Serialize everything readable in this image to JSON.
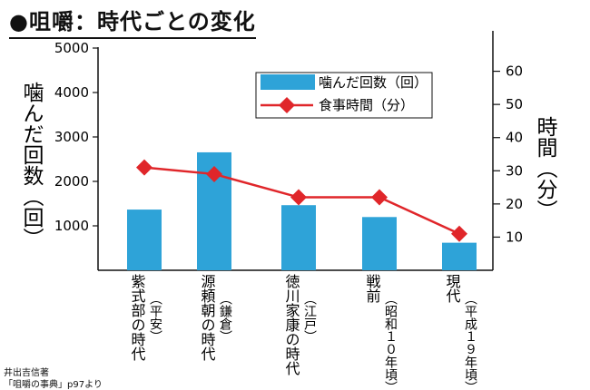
{
  "title": "●咀嚼：時代ごとの変化",
  "credit": {
    "line1": "井出吉信著",
    "line2": "「咀嚼の事典」p97より"
  },
  "chart_data": {
    "type": "bar+line",
    "categories": [
      {
        "name": "紫式部の時代",
        "era": "（平安）"
      },
      {
        "name": "源頼朝の時代",
        "era": "（鎌倉）"
      },
      {
        "name": "徳川家康の時代",
        "era": "（江戸）"
      },
      {
        "name": "戦前",
        "era": "（昭和１０年頃）"
      },
      {
        "name": "現代",
        "era": "（平成１９年頃）"
      }
    ],
    "series": [
      {
        "name": "噛んだ回数（回）",
        "type": "bar",
        "axis": "left",
        "color": "#2ea3d8",
        "values": [
          1366,
          2654,
          1465,
          1198,
          620
        ]
      },
      {
        "name": "食事時間（分）",
        "type": "line",
        "axis": "right",
        "color": "#e0262a",
        "values": [
          31,
          29,
          22,
          22,
          11
        ]
      }
    ],
    "y_left": {
      "label": "噛んだ回数（回）",
      "ylim": [
        0,
        5000
      ],
      "ticks": [
        "1000",
        "2000",
        "3000",
        "4000",
        "5000"
      ]
    },
    "y_right": {
      "label": "時間（分）",
      "ylim": [
        0,
        70
      ],
      "ticks": [
        "10",
        "20",
        "30",
        "40",
        "50",
        "60"
      ]
    },
    "legend": {
      "position": "top-right"
    }
  }
}
